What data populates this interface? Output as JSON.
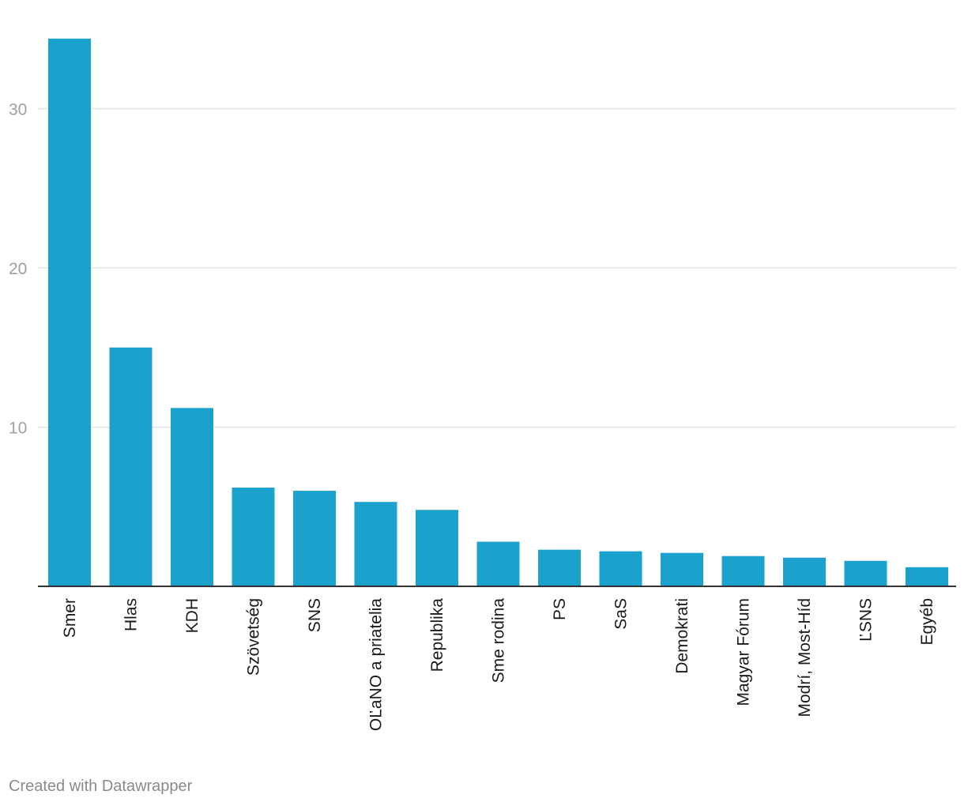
{
  "chart_data": {
    "type": "bar",
    "categories": [
      "Smer",
      "Hlas",
      "KDH",
      "Szövetség",
      "SNS",
      "OĽaNO a priatelia",
      "Republika",
      "Sme rodina",
      "PS",
      "SaS",
      "Demokrati",
      "Magyar Fórum",
      "Modrí, Most-Híd",
      "ĽSNS",
      "Egyéb"
    ],
    "values": [
      34.4,
      15.0,
      11.2,
      6.2,
      6.0,
      5.3,
      4.8,
      2.8,
      2.3,
      2.2,
      2.1,
      1.9,
      1.8,
      1.6,
      1.2
    ],
    "ylim": [
      0,
      35
    ],
    "yticks": [
      10,
      20,
      30
    ],
    "grid": true,
    "colors": {
      "bar": "#1aa1cc"
    }
  },
  "footer": {
    "credit": "Created with Datawrapper"
  }
}
